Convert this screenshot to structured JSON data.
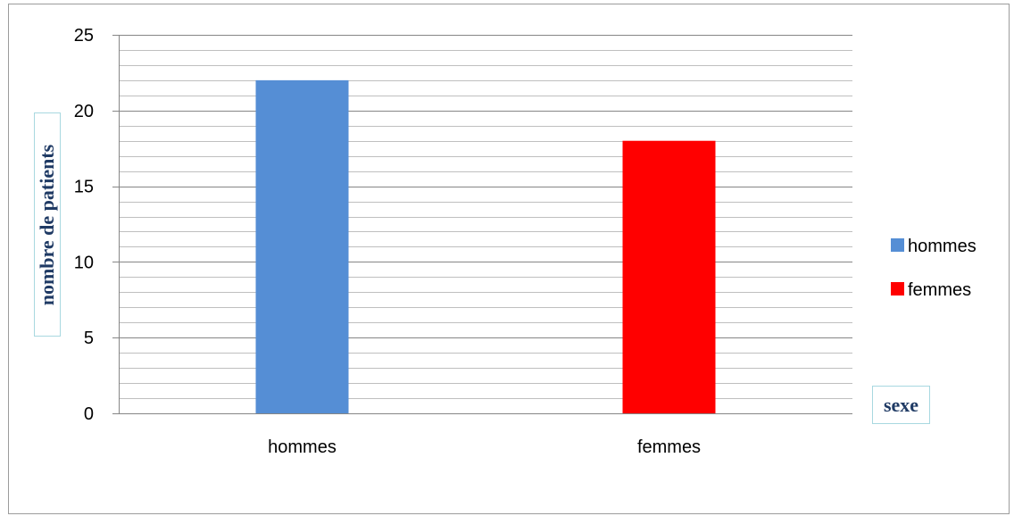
{
  "chart_data": {
    "type": "bar",
    "categories": [
      "hommes",
      "femmes"
    ],
    "values": [
      22,
      18
    ],
    "colors": [
      "#558ed5",
      "#ff0000"
    ],
    "ylabel": "nombre de patients",
    "xlabel": "sexe",
    "ylim": [
      0,
      25
    ],
    "yticks": [
      0,
      5,
      10,
      15,
      20,
      25
    ],
    "minor_grid_step": 1,
    "grid": true,
    "legend": {
      "placement": "right",
      "entries": [
        {
          "label": "hommes",
          "color": "#558ed5"
        },
        {
          "label": "femmes",
          "color": "#ff0000"
        }
      ]
    }
  }
}
